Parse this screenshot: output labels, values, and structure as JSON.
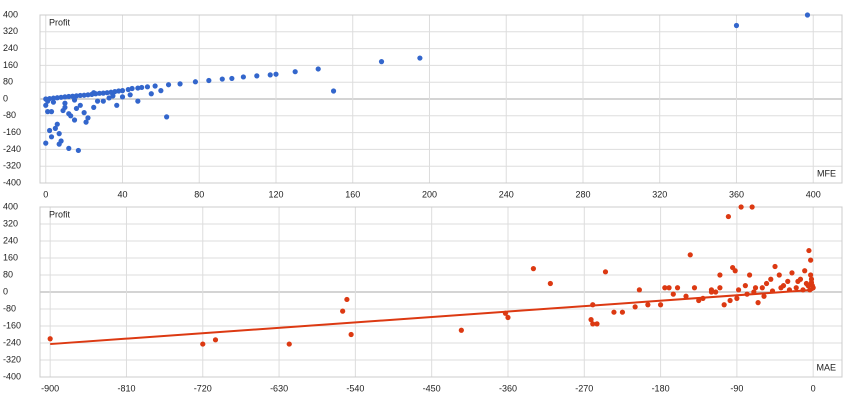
{
  "chart_data": [
    {
      "type": "scatter",
      "x_label": "MFE",
      "y_label": "Profit",
      "color": "#3366cc",
      "grid": true,
      "xlim": [
        -3,
        415
      ],
      "ylim": [
        -400,
        400
      ],
      "xticks": [
        0,
        40,
        80,
        120,
        160,
        200,
        240,
        280,
        320,
        360,
        400
      ],
      "yticks": [
        -400,
        -320,
        -240,
        -160,
        -80,
        0,
        80,
        160,
        240,
        320,
        400
      ],
      "x": [
        360,
        397,
        195,
        175,
        142,
        150,
        130,
        120,
        117,
        110,
        103,
        97,
        92,
        85,
        78,
        70,
        64,
        63,
        57,
        53,
        50,
        48,
        45,
        43,
        40,
        38,
        36,
        34,
        32,
        30,
        28,
        26,
        24,
        22,
        20,
        18,
        16,
        14,
        12,
        10,
        8,
        6,
        4,
        2,
        0,
        1,
        0,
        1,
        2,
        3,
        0,
        10,
        6,
        5,
        7,
        8,
        7,
        12,
        17,
        13,
        15,
        20,
        22,
        21,
        25,
        30,
        37,
        48,
        40,
        35,
        18,
        10,
        4,
        12,
        9,
        3,
        16,
        27,
        33,
        44,
        55,
        60,
        25,
        15
      ],
      "values": [
        350,
        400,
        195,
        178,
        143,
        38,
        130,
        118,
        115,
        110,
        105,
        98,
        95,
        88,
        82,
        72,
        68,
        -85,
        62,
        58,
        55,
        52,
        50,
        45,
        40,
        38,
        35,
        32,
        30,
        28,
        27,
        25,
        22,
        20,
        18,
        17,
        15,
        13,
        12,
        10,
        8,
        6,
        4,
        2,
        0,
        -10,
        -30,
        -60,
        -150,
        -180,
        -210,
        -40,
        -120,
        -140,
        -165,
        -200,
        -215,
        -235,
        -245,
        -80,
        -100,
        -65,
        -90,
        -110,
        -40,
        -10,
        -30,
        -10,
        10,
        15,
        -30,
        -20,
        -15,
        -70,
        -55,
        -60,
        -45,
        -10,
        5,
        20,
        25,
        40,
        30,
        -5
      ]
    },
    {
      "type": "scatter",
      "x_label": "MAE",
      "y_label": "Profit",
      "color": "#dc3912",
      "grid": true,
      "xlim": [
        -912,
        34
      ],
      "ylim": [
        -400,
        400
      ],
      "xticks": [
        -900,
        -810,
        -720,
        -630,
        -540,
        -450,
        -360,
        -270,
        -180,
        -90,
        0
      ],
      "yticks": [
        -400,
        -320,
        -240,
        -160,
        -80,
        0,
        80,
        160,
        240,
        320,
        400
      ],
      "x": [
        -900,
        -720,
        -705,
        -618,
        -555,
        -550,
        -545,
        -415,
        -330,
        -310,
        -363,
        -360,
        -260,
        -262,
        -260,
        -255,
        -245,
        -235,
        -225,
        -210,
        -205,
        -195,
        -180,
        -175,
        -170,
        -165,
        -160,
        -150,
        -145,
        -140,
        -135,
        -130,
        -120,
        -115,
        -110,
        -105,
        -100,
        -98,
        -95,
        -92,
        -90,
        -85,
        -72,
        -75,
        -80,
        -70,
        -65,
        -60,
        -55,
        -50,
        -45,
        -40,
        -35,
        -30,
        -25,
        -20,
        -15,
        -10,
        -5,
        -3,
        -2,
        -1,
        0,
        -8,
        -12,
        -18,
        -28,
        -38,
        -48,
        -58,
        -68,
        -78,
        -88,
        -110,
        -120,
        -3,
        -6,
        -4,
        -2
      ],
      "values": [
        -220,
        -245,
        -225,
        -245,
        -90,
        -35,
        -200,
        -180,
        110,
        40,
        -100,
        -120,
        -60,
        -130,
        -150,
        -150,
        95,
        -95,
        -95,
        -70,
        10,
        -60,
        -60,
        20,
        20,
        -10,
        20,
        -20,
        175,
        20,
        -40,
        -30,
        10,
        0,
        20,
        -60,
        355,
        -40,
        115,
        100,
        -30,
        400,
        400,
        80,
        30,
        0,
        -50,
        20,
        40,
        60,
        120,
        80,
        30,
        50,
        90,
        20,
        60,
        100,
        195,
        150,
        60,
        30,
        20,
        40,
        10,
        50,
        10,
        20,
        5,
        -20,
        20,
        -10,
        10,
        80,
        0,
        80,
        30,
        10,
        45
      ],
      "trendline": {
        "x": [
          -900,
          0
        ],
        "y": [
          -245,
          10
        ]
      }
    }
  ]
}
